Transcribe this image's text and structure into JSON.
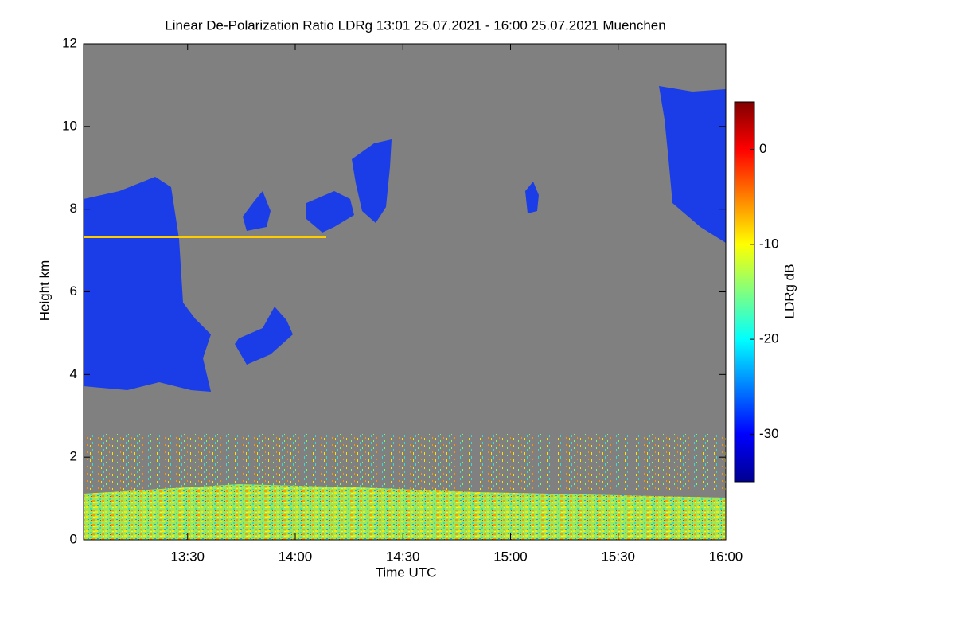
{
  "chart_data": {
    "type": "heatmap",
    "title": "Linear De-Polarization Ratio LDRg   13:01 25.07.2021 - 16:00 25.07.2021 Muenchen",
    "xlabel": "Time UTC",
    "ylabel": "Height km",
    "xlim": [
      "2021-07-25T13:01",
      "2021-07-25T16:00"
    ],
    "xticks": [
      {
        "value": "2021-07-25T13:30",
        "label": "13:30"
      },
      {
        "value": "2021-07-25T14:00",
        "label": "14:00"
      },
      {
        "value": "2021-07-25T14:30",
        "label": "14:30"
      },
      {
        "value": "2021-07-25T15:00",
        "label": "15:00"
      },
      {
        "value": "2021-07-25T15:30",
        "label": "15:30"
      },
      {
        "value": "2021-07-25T16:00",
        "label": "16:00"
      }
    ],
    "ylim": [
      0,
      12
    ],
    "yticks": [
      0,
      2,
      4,
      6,
      8,
      10,
      12
    ],
    "colorbar": {
      "label": "LDRg dB",
      "clim": [
        -35,
        5
      ],
      "ticks": [
        0,
        -10,
        -20,
        -30
      ],
      "colormap": [
        "#00008f",
        "#0000ff",
        "#0080ff",
        "#00ffff",
        "#80ff80",
        "#ffff00",
        "#ff8000",
        "#ff0000",
        "#800000"
      ]
    }
  }
}
